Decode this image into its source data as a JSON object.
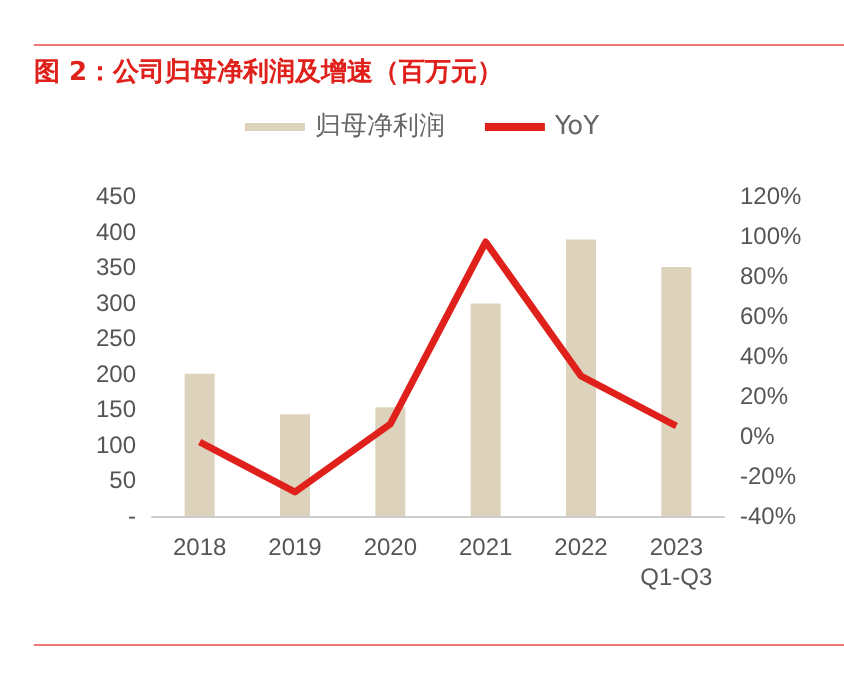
{
  "chart_data": {
    "type": "bar",
    "title": "图 2：公司归母净利润及增速（百万元）",
    "categories": [
      "2018",
      "2019",
      "2020",
      "2021",
      "2022",
      "2023\nQ1-Q3"
    ],
    "series": [
      {
        "name": "归母净利润",
        "color": "#ddd3bc",
        "values": [
          200,
          143,
          153,
          299,
          389,
          350
        ]
      },
      {
        "name": "YoY",
        "type": "line",
        "axis": "y2",
        "color": "#e0201b",
        "values": [
          -3,
          -28,
          6,
          97,
          30,
          5
        ]
      }
    ],
    "ylim": [
      0,
      450
    ],
    "yticks": [
      {
        "value": 0,
        "label": "-"
      },
      50,
      100,
      150,
      200,
      250,
      300,
      350,
      400,
      450
    ],
    "y2lim": [
      -40,
      120
    ],
    "y2ticks": [
      {
        "value": -40,
        "label": "-40%"
      },
      {
        "value": -20,
        "label": "-20%"
      },
      {
        "value": 0,
        "label": "0%"
      },
      {
        "value": 20,
        "label": "20%"
      },
      {
        "value": 40,
        "label": "40%"
      },
      {
        "value": 60,
        "label": "60%"
      },
      {
        "value": 80,
        "label": "80%"
      },
      {
        "value": 100,
        "label": "100%"
      },
      {
        "value": 120,
        "label": "120%"
      }
    ],
    "grid": false,
    "legend": "top",
    "marker": "none",
    "line_style": "solid"
  }
}
